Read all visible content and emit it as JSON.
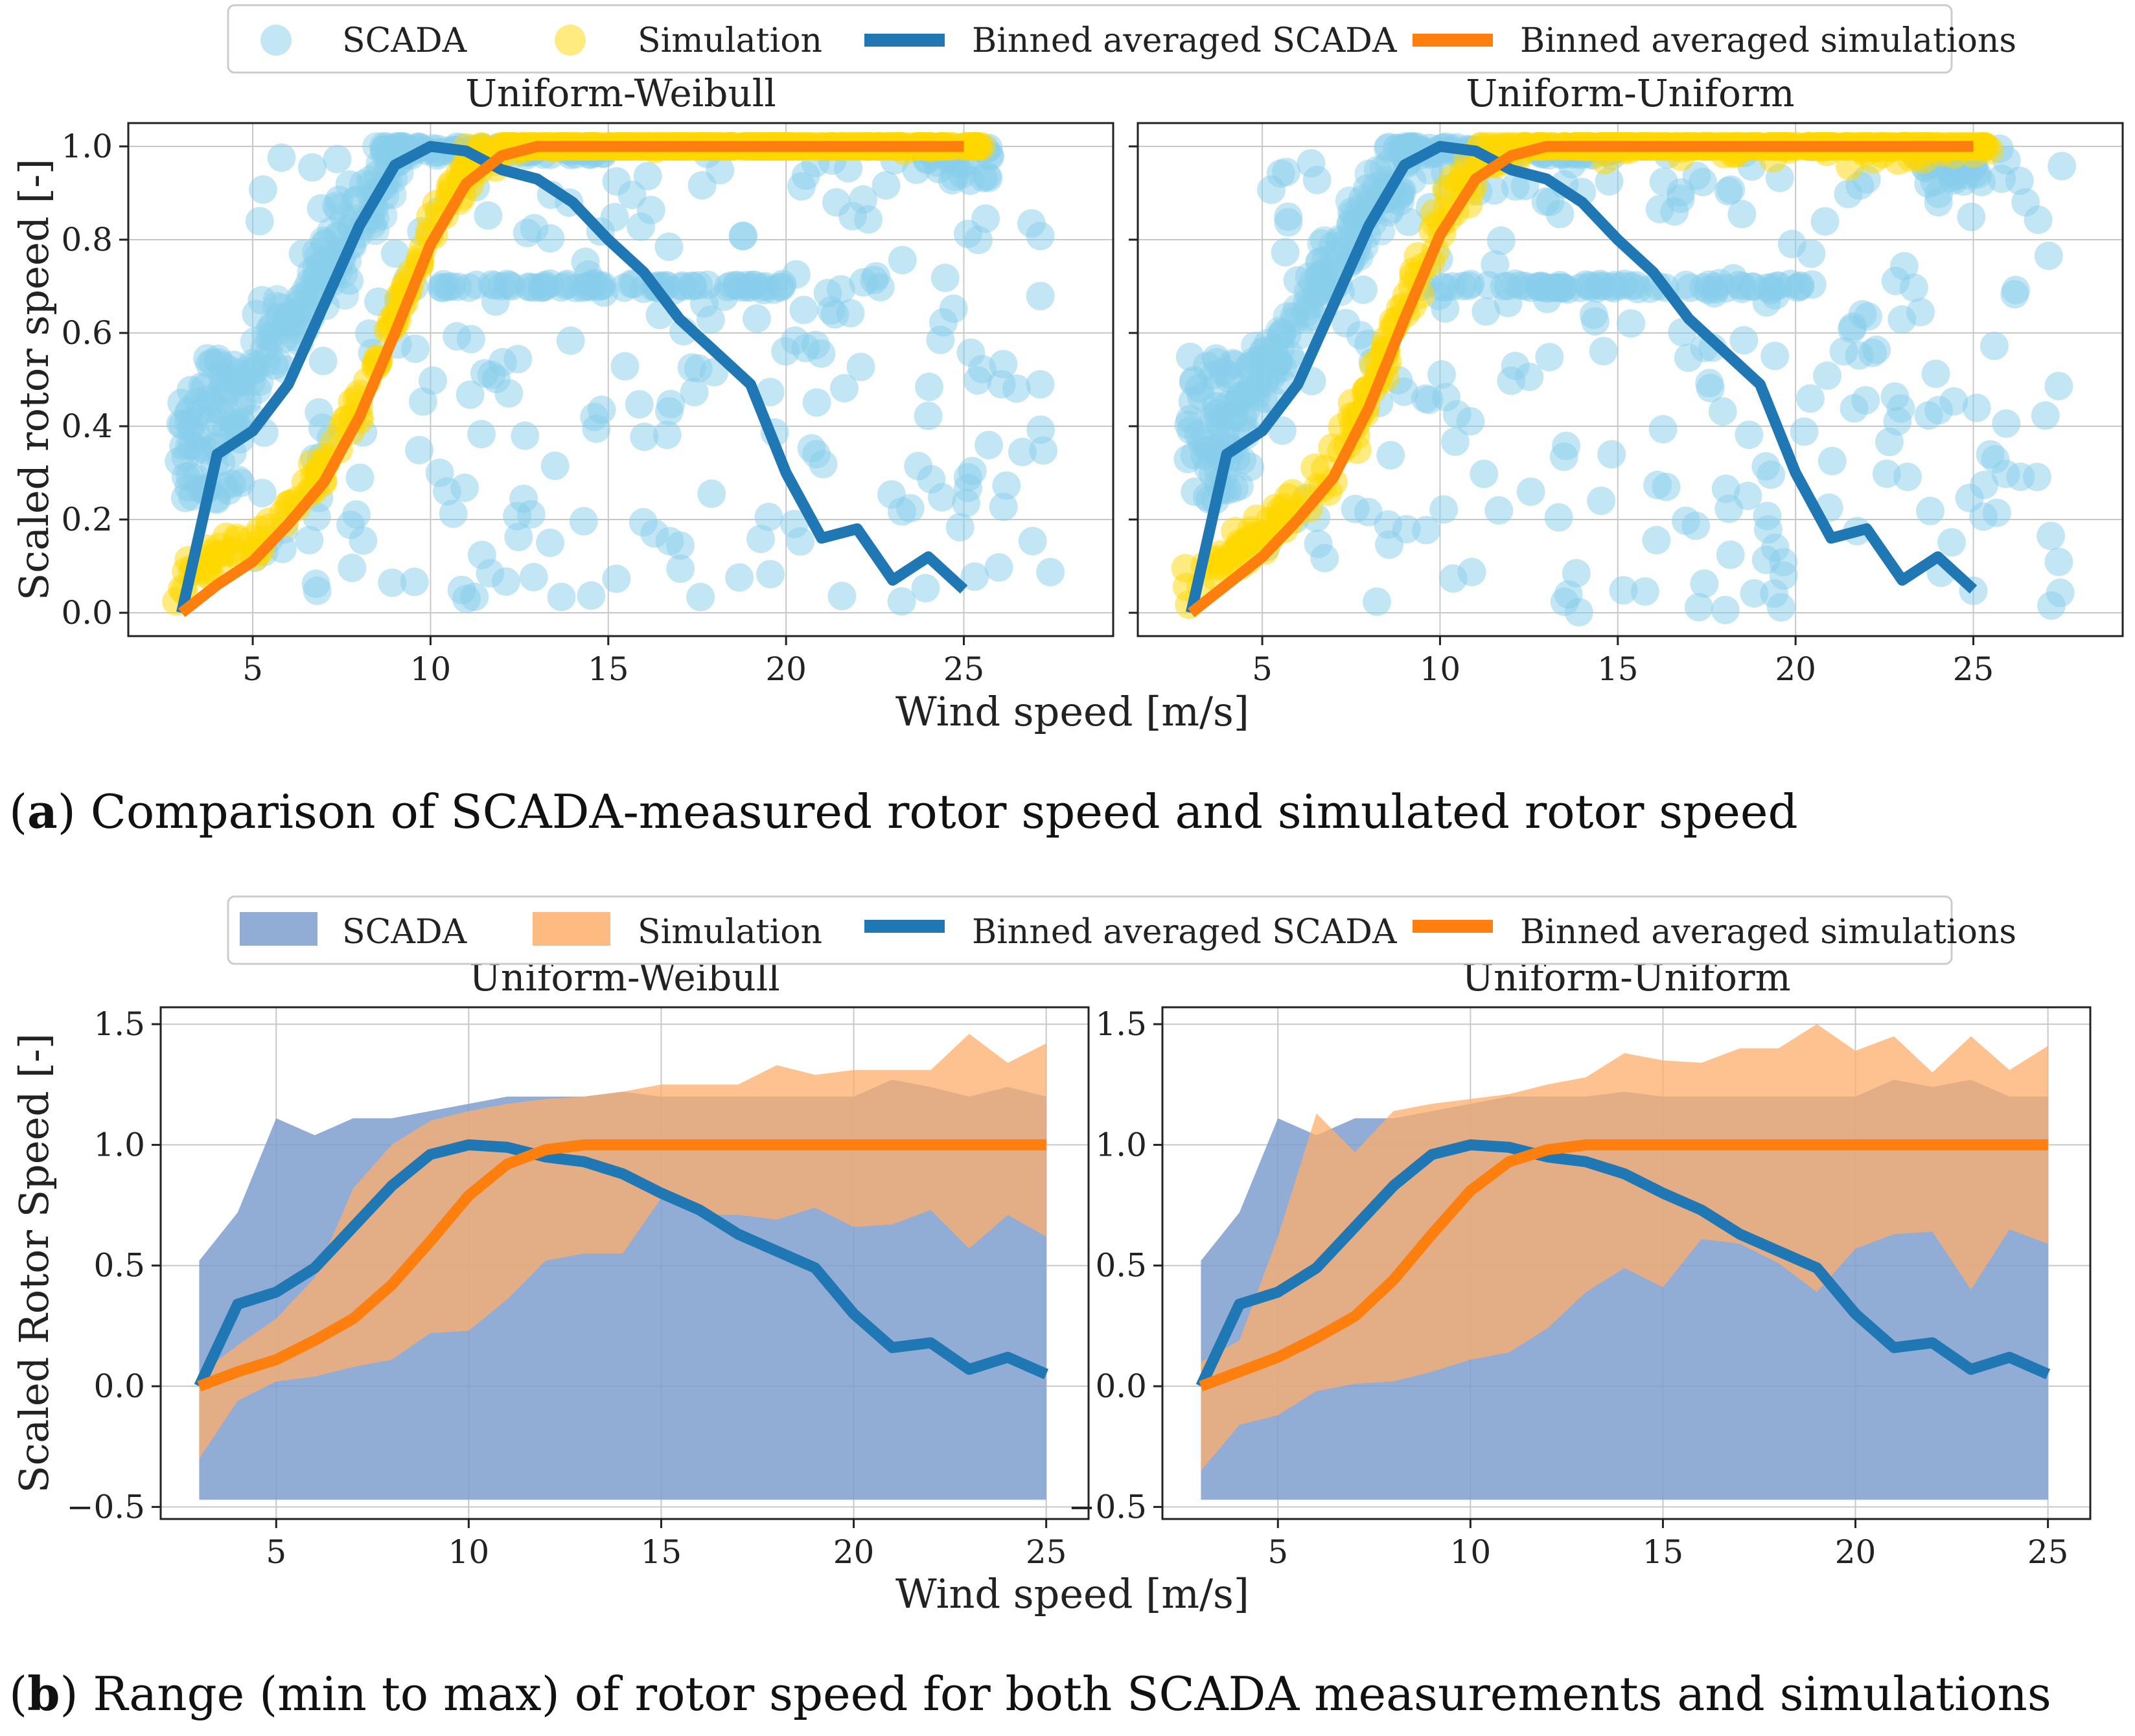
{
  "figure_a": {
    "legend": [
      "SCADA",
      "Simulation",
      "Binned averaged SCADA",
      "Binned averaged simulations"
    ],
    "caption_letter": "a",
    "caption_text": "Comparison of SCADA-measured rotor speed and simulated rotor speed"
  },
  "figure_b": {
    "legend": [
      "SCADA",
      "Simulation",
      "Binned averaged SCADA",
      "Binned averaged simulations"
    ],
    "caption_letter": "b",
    "caption_text": "Range (min to max) of rotor speed for both SCADA measurements and simulations"
  },
  "colors": {
    "scada_scatter": "#87ceeb",
    "sim_scatter": "#ffd700",
    "scada_line": "#1f77b4",
    "sim_line": "#ff7f0e",
    "scada_band": "#7f9fce",
    "sim_band": "#fdae6b"
  },
  "chart_data": [
    {
      "id": "a-left",
      "type": "scatter",
      "title": "Uniform-Weibull",
      "xlabel": "Wind speed [m/s]",
      "ylabel": "Scaled rotor speed [-]",
      "xlim": [
        1.5,
        29.2
      ],
      "ylim": [
        -0.05,
        1.05
      ],
      "xticks": [
        5,
        10,
        15,
        20,
        25
      ],
      "yticks": [
        0.0,
        0.2,
        0.4,
        0.6,
        0.8,
        1.0
      ],
      "ytick_labels": [
        "0.0",
        "0.2",
        "0.4",
        "0.6",
        "0.8",
        "1.0"
      ],
      "grid": true,
      "series": [
        {
          "name": "Binned averaged SCADA",
          "x": [
            3,
            4,
            5,
            6,
            7,
            8,
            9,
            10,
            11,
            12,
            13,
            14,
            15,
            16,
            17,
            18,
            19,
            20,
            21,
            22,
            23,
            24,
            25
          ],
          "values": [
            0.0,
            0.34,
            0.39,
            0.49,
            0.66,
            0.83,
            0.96,
            1.0,
            0.99,
            0.95,
            0.93,
            0.88,
            0.8,
            0.73,
            0.63,
            0.56,
            0.49,
            0.3,
            0.16,
            0.18,
            0.07,
            0.12,
            0.05
          ]
        },
        {
          "name": "Binned averaged simulations",
          "x": [
            3,
            4,
            5,
            6,
            7,
            8,
            9,
            10,
            11,
            12,
            13,
            14,
            15,
            16,
            17,
            18,
            19,
            20,
            21,
            22,
            23,
            24,
            25
          ],
          "values": [
            0.0,
            0.06,
            0.11,
            0.19,
            0.28,
            0.42,
            0.6,
            0.79,
            0.92,
            0.98,
            1.0,
            1.0,
            1.0,
            1.0,
            1.0,
            1.0,
            1.0,
            1.0,
            1.0,
            1.0,
            1.0,
            1.0,
            1.0
          ]
        }
      ]
    },
    {
      "id": "a-right",
      "type": "scatter",
      "title": "Uniform-Uniform",
      "xlabel": "Wind speed [m/s]",
      "ylabel": "",
      "xlim": [
        1.5,
        29.2
      ],
      "ylim": [
        -0.05,
        1.05
      ],
      "xticks": [
        5,
        10,
        15,
        20,
        25
      ],
      "yticks": [
        0.0,
        0.2,
        0.4,
        0.6,
        0.8,
        1.0
      ],
      "ytick_labels": [],
      "grid": true,
      "series": [
        {
          "name": "Binned averaged SCADA",
          "x": [
            3,
            4,
            5,
            6,
            7,
            8,
            9,
            10,
            11,
            12,
            13,
            14,
            15,
            16,
            17,
            18,
            19,
            20,
            21,
            22,
            23,
            24,
            25
          ],
          "values": [
            0.0,
            0.34,
            0.39,
            0.49,
            0.66,
            0.83,
            0.96,
            1.0,
            0.99,
            0.95,
            0.93,
            0.88,
            0.8,
            0.73,
            0.63,
            0.56,
            0.49,
            0.3,
            0.16,
            0.18,
            0.07,
            0.12,
            0.05
          ]
        },
        {
          "name": "Binned averaged simulations",
          "x": [
            3,
            4,
            5,
            6,
            7,
            8,
            9,
            10,
            11,
            12,
            13,
            14,
            15,
            16,
            17,
            18,
            19,
            20,
            21,
            22,
            23,
            24,
            25
          ],
          "values": [
            0.0,
            0.06,
            0.12,
            0.2,
            0.29,
            0.44,
            0.63,
            0.81,
            0.93,
            0.98,
            1.0,
            1.0,
            1.0,
            1.0,
            1.0,
            1.0,
            1.0,
            1.0,
            1.0,
            1.0,
            1.0,
            1.0,
            1.0
          ]
        }
      ]
    },
    {
      "id": "b-left",
      "type": "area",
      "title": "Uniform-Weibull",
      "xlabel": "Wind speed [m/s]",
      "ylabel": "Scaled Rotor Speed [-]",
      "xlim": [
        2.0,
        26.1
      ],
      "ylim": [
        -0.55,
        1.57
      ],
      "xticks": [
        5,
        10,
        15,
        20,
        25
      ],
      "yticks": [
        -0.5,
        0.0,
        0.5,
        1.0,
        1.5
      ],
      "ytick_labels": [
        "−0.5",
        "0.0",
        "0.5",
        "1.0",
        "1.5"
      ],
      "grid": true,
      "x": [
        3,
        4,
        5,
        6,
        7,
        8,
        9,
        10,
        11,
        12,
        13,
        14,
        15,
        16,
        17,
        18,
        19,
        20,
        21,
        22,
        23,
        24,
        25
      ],
      "bands": [
        {
          "name": "SCADA",
          "max": [
            0.52,
            0.72,
            1.11,
            1.04,
            1.11,
            1.11,
            1.14,
            1.17,
            1.2,
            1.2,
            1.2,
            1.22,
            1.2,
            1.2,
            1.2,
            1.2,
            1.2,
            1.2,
            1.27,
            1.24,
            1.2,
            1.24,
            1.2
          ],
          "min": [
            -0.47,
            -0.47,
            -0.47,
            -0.47,
            -0.47,
            -0.47,
            -0.47,
            -0.47,
            -0.47,
            -0.47,
            -0.47,
            -0.47,
            -0.47,
            -0.47,
            -0.47,
            -0.47,
            -0.47,
            -0.47,
            -0.47,
            -0.47,
            -0.47,
            -0.47,
            -0.47
          ]
        },
        {
          "name": "Simulation",
          "max": [
            0.05,
            0.17,
            0.28,
            0.45,
            0.82,
            1.0,
            1.1,
            1.14,
            1.17,
            1.19,
            1.2,
            1.22,
            1.25,
            1.25,
            1.25,
            1.33,
            1.29,
            1.31,
            1.31,
            1.31,
            1.46,
            1.34,
            1.42
          ],
          "min": [
            -0.3,
            -0.06,
            0.02,
            0.04,
            0.08,
            0.11,
            0.22,
            0.23,
            0.36,
            0.52,
            0.55,
            0.55,
            0.78,
            0.71,
            0.71,
            0.69,
            0.74,
            0.66,
            0.67,
            0.73,
            0.57,
            0.71,
            0.62
          ]
        }
      ],
      "series": [
        {
          "name": "Binned averaged SCADA",
          "values": [
            0.0,
            0.34,
            0.39,
            0.49,
            0.66,
            0.83,
            0.96,
            1.0,
            0.99,
            0.95,
            0.93,
            0.88,
            0.8,
            0.73,
            0.63,
            0.56,
            0.49,
            0.3,
            0.16,
            0.18,
            0.07,
            0.12,
            0.05
          ]
        },
        {
          "name": "Binned averaged simulations",
          "values": [
            0.0,
            0.06,
            0.11,
            0.19,
            0.28,
            0.42,
            0.6,
            0.79,
            0.92,
            0.98,
            1.0,
            1.0,
            1.0,
            1.0,
            1.0,
            1.0,
            1.0,
            1.0,
            1.0,
            1.0,
            1.0,
            1.0,
            1.0
          ]
        }
      ]
    },
    {
      "id": "b-right",
      "type": "area",
      "title": "Uniform-Uniform",
      "xlabel": "Wind speed [m/s]",
      "ylabel": "",
      "xlim": [
        2.0,
        26.1
      ],
      "ylim": [
        -0.55,
        1.57
      ],
      "xticks": [
        5,
        10,
        15,
        20,
        25
      ],
      "yticks": [
        -0.5,
        0.0,
        0.5,
        1.0,
        1.5
      ],
      "ytick_labels": [
        "−0.5",
        "0.0",
        "0.5",
        "1.0",
        "1.5"
      ],
      "grid": true,
      "x": [
        3,
        4,
        5,
        6,
        7,
        8,
        9,
        10,
        11,
        12,
        13,
        14,
        15,
        16,
        17,
        18,
        19,
        20,
        21,
        22,
        23,
        24,
        25
      ],
      "bands": [
        {
          "name": "SCADA",
          "max": [
            0.52,
            0.72,
            1.11,
            1.04,
            1.11,
            1.11,
            1.14,
            1.17,
            1.2,
            1.2,
            1.2,
            1.22,
            1.2,
            1.2,
            1.2,
            1.2,
            1.2,
            1.2,
            1.27,
            1.24,
            1.27,
            1.2,
            1.2
          ],
          "min": [
            -0.47,
            -0.47,
            -0.47,
            -0.47,
            -0.47,
            -0.47,
            -0.47,
            -0.47,
            -0.47,
            -0.47,
            -0.47,
            -0.47,
            -0.47,
            -0.47,
            -0.47,
            -0.47,
            -0.47,
            -0.47,
            -0.47,
            -0.47,
            -0.47,
            -0.47,
            -0.47
          ]
        },
        {
          "name": "Simulation",
          "max": [
            0.1,
            0.19,
            0.62,
            1.13,
            0.97,
            1.14,
            1.17,
            1.19,
            1.21,
            1.25,
            1.28,
            1.38,
            1.35,
            1.34,
            1.4,
            1.4,
            1.5,
            1.39,
            1.45,
            1.3,
            1.45,
            1.31,
            1.41
          ],
          "min": [
            -0.35,
            -0.16,
            -0.12,
            -0.02,
            0.01,
            0.02,
            0.06,
            0.11,
            0.14,
            0.24,
            0.39,
            0.49,
            0.41,
            0.61,
            0.59,
            0.51,
            0.39,
            0.57,
            0.63,
            0.64,
            0.4,
            0.65,
            0.59
          ]
        }
      ],
      "series": [
        {
          "name": "Binned averaged SCADA",
          "values": [
            0.0,
            0.34,
            0.39,
            0.49,
            0.66,
            0.83,
            0.96,
            1.0,
            0.99,
            0.95,
            0.93,
            0.88,
            0.8,
            0.73,
            0.63,
            0.56,
            0.49,
            0.3,
            0.16,
            0.18,
            0.07,
            0.12,
            0.05
          ]
        },
        {
          "name": "Binned averaged simulations",
          "values": [
            0.0,
            0.06,
            0.12,
            0.2,
            0.29,
            0.44,
            0.63,
            0.81,
            0.93,
            0.98,
            1.0,
            1.0,
            1.0,
            1.0,
            1.0,
            1.0,
            1.0,
            1.0,
            1.0,
            1.0,
            1.0,
            1.0,
            1.0
          ]
        }
      ]
    }
  ]
}
